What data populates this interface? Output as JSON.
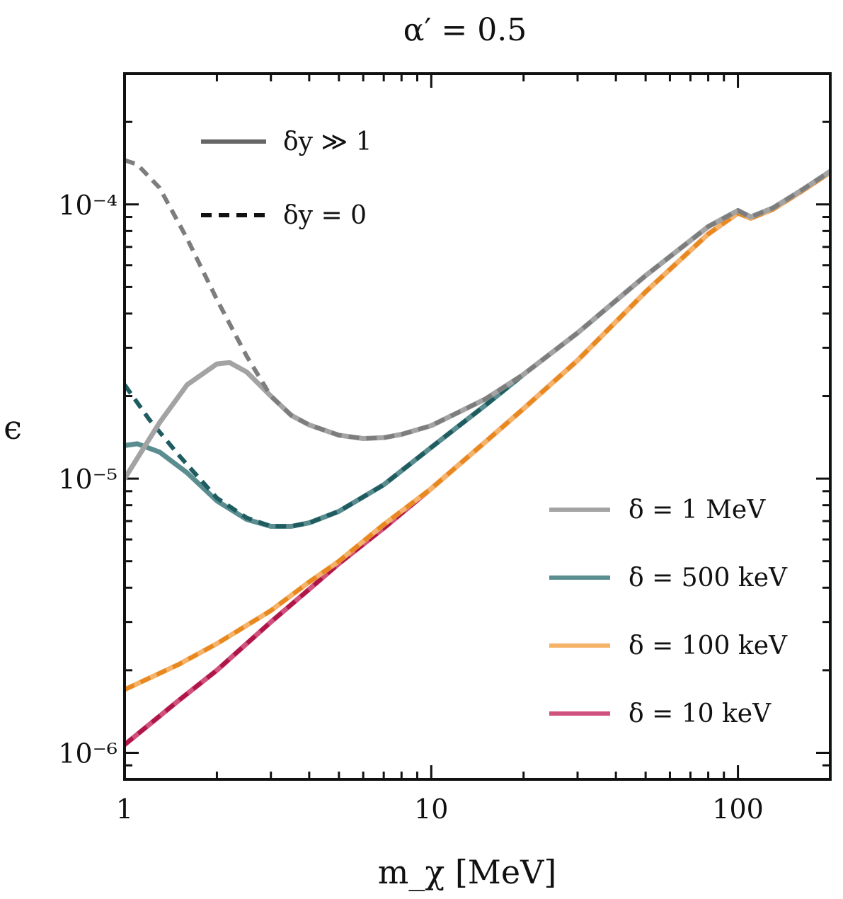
{
  "chart_data": {
    "type": "line",
    "title": "α′ = 0.5",
    "xlabel": "m_χ [MeV]",
    "ylabel": "ϵ",
    "xscale": "log",
    "yscale": "log",
    "xlim": [
      1,
      200
    ],
    "ylim": [
      8e-07,
      0.0003
    ],
    "x_ticks": [
      {
        "value": 1,
        "label": "1"
      },
      {
        "value": 10,
        "label": "10"
      },
      {
        "value": 100,
        "label": "100"
      }
    ],
    "y_ticks": [
      {
        "value": 1e-06,
        "label": "10⁻⁶"
      },
      {
        "value": 1e-05,
        "label": "10⁻⁵"
      },
      {
        "value": 0.0001,
        "label": "10⁻⁴"
      }
    ],
    "style_legend": [
      {
        "label": "δy ≫ 1",
        "style": "solid"
      },
      {
        "label": "δy = 0",
        "style": "dashed"
      }
    ],
    "series": [
      {
        "name": "δ = 1 MeV",
        "color": "#a3a3a3",
        "dash_color": "#7d7d7d",
        "solid": {
          "x": [
            1,
            1.3,
            1.6,
            2,
            2.2,
            2.5,
            3,
            3.5,
            4,
            5,
            6,
            7,
            8,
            10,
            15,
            20,
            30,
            50,
            80,
            100,
            110,
            130,
            160,
            200
          ],
          "y": [
            1e-05,
            1.6e-05,
            2.2e-05,
            2.62e-05,
            2.65e-05,
            2.45e-05,
            2e-05,
            1.7e-05,
            1.57e-05,
            1.44e-05,
            1.4e-05,
            1.41e-05,
            1.45e-05,
            1.56e-05,
            1.95e-05,
            2.4e-05,
            3.4e-05,
            5.5e-05,
            8.3e-05,
            9.5e-05,
            9e-05,
            9.7e-05,
            0.000112,
            0.000132
          ]
        },
        "dashed": {
          "x": [
            1,
            1.1,
            1.3,
            1.6,
            2,
            2.5,
            3,
            3.5,
            4,
            5,
            6,
            7,
            8,
            10,
            15,
            20,
            30,
            50,
            80,
            100,
            110,
            130,
            160,
            200
          ],
          "y": [
            0.000145,
            0.00014,
            0.000115,
            7.5e-05,
            4.5e-05,
            2.8e-05,
            2e-05,
            1.7e-05,
            1.57e-05,
            1.44e-05,
            1.4e-05,
            1.41e-05,
            1.45e-05,
            1.56e-05,
            1.95e-05,
            2.4e-05,
            3.4e-05,
            5.5e-05,
            8.3e-05,
            9.5e-05,
            9e-05,
            9.7e-05,
            0.000112,
            0.000132
          ]
        }
      },
      {
        "name": "δ = 500 keV",
        "color": "#5a8d90",
        "dash_color": "#1f5c60",
        "solid": {
          "x": [
            1,
            1.1,
            1.3,
            1.6,
            2,
            2.5,
            3,
            3.5,
            4,
            5,
            7,
            10,
            15,
            20,
            30,
            50,
            80,
            100,
            110,
            130,
            160,
            200
          ],
          "y": [
            1.32e-05,
            1.34e-05,
            1.25e-05,
            1.05e-05,
            8.3e-06,
            7.1e-06,
            6.7e-06,
            6.7e-06,
            6.9e-06,
            7.6e-06,
            9.5e-06,
            1.3e-05,
            1.85e-05,
            2.4e-05,
            3.4e-05,
            5.5e-05,
            8.3e-05,
            9.5e-05,
            9e-05,
            9.7e-05,
            0.000112,
            0.000132
          ]
        },
        "dashed": {
          "x": [
            1,
            1.2,
            1.5,
            2,
            2.5,
            3,
            3.5,
            4,
            5,
            7,
            10,
            15,
            20,
            30,
            50,
            80,
            100,
            110,
            130,
            160,
            200
          ],
          "y": [
            2.2e-05,
            1.65e-05,
            1.22e-05,
            8.5e-06,
            7.2e-06,
            6.7e-06,
            6.7e-06,
            6.9e-06,
            7.6e-06,
            9.5e-06,
            1.3e-05,
            1.85e-05,
            2.4e-05,
            3.4e-05,
            5.5e-05,
            8.3e-05,
            9.5e-05,
            9e-05,
            9.7e-05,
            0.000112,
            0.000132
          ]
        }
      },
      {
        "name": "δ = 100 keV",
        "color": "#f5b36a",
        "dash_color": "#e8881f",
        "solid": {
          "x": [
            1,
            1.5,
            2,
            3,
            4,
            5,
            7,
            10,
            15,
            20,
            30,
            50,
            80,
            100,
            110,
            130,
            160,
            200
          ],
          "y": [
            1.7e-06,
            2.1e-06,
            2.5e-06,
            3.3e-06,
            4.2e-06,
            5e-06,
            6.8e-06,
            9.2e-06,
            1.36e-05,
            1.8e-05,
            2.7e-05,
            4.8e-05,
            7.8e-05,
            9.3e-05,
            8.9e-05,
            9.6e-05,
            0.000111,
            0.000131
          ]
        },
        "dashed": {
          "x": [
            1,
            1.5,
            2,
            3,
            4,
            5,
            7,
            10,
            15,
            20,
            30,
            50,
            80,
            100,
            110,
            130,
            160,
            200
          ],
          "y": [
            1.7e-06,
            2.1e-06,
            2.5e-06,
            3.3e-06,
            4.2e-06,
            5e-06,
            6.8e-06,
            9.2e-06,
            1.36e-05,
            1.8e-05,
            2.7e-05,
            4.8e-05,
            7.8e-05,
            9.3e-05,
            8.9e-05,
            9.6e-05,
            0.000111,
            0.000131
          ]
        }
      },
      {
        "name": "δ = 10 keV",
        "color": "#d0507e",
        "dash_color": "#b01548",
        "solid": {
          "x": [
            1,
            1.5,
            2,
            3,
            4,
            5,
            7,
            10,
            15,
            20,
            30,
            50,
            80,
            100,
            110,
            130,
            160,
            200
          ],
          "y": [
            1.07e-06,
            1.55e-06,
            2e-06,
            3e-06,
            3.95e-06,
            4.9e-06,
            6.6e-06,
            9.2e-06,
            1.36e-05,
            1.8e-05,
            2.7e-05,
            4.8e-05,
            7.8e-05,
            9.3e-05,
            8.9e-05,
            9.6e-05,
            0.000111,
            0.000131
          ]
        },
        "dashed": {
          "x": [
            1,
            1.5,
            2,
            3,
            4,
            5,
            7,
            10,
            15,
            20,
            30,
            50,
            80,
            100,
            110,
            130,
            160,
            200
          ],
          "y": [
            1.07e-06,
            1.55e-06,
            2e-06,
            3e-06,
            3.95e-06,
            4.9e-06,
            6.6e-06,
            9.2e-06,
            1.36e-05,
            1.8e-05,
            2.7e-05,
            4.8e-05,
            7.8e-05,
            9.3e-05,
            8.9e-05,
            9.6e-05,
            0.000111,
            0.000131
          ]
        }
      }
    ]
  }
}
